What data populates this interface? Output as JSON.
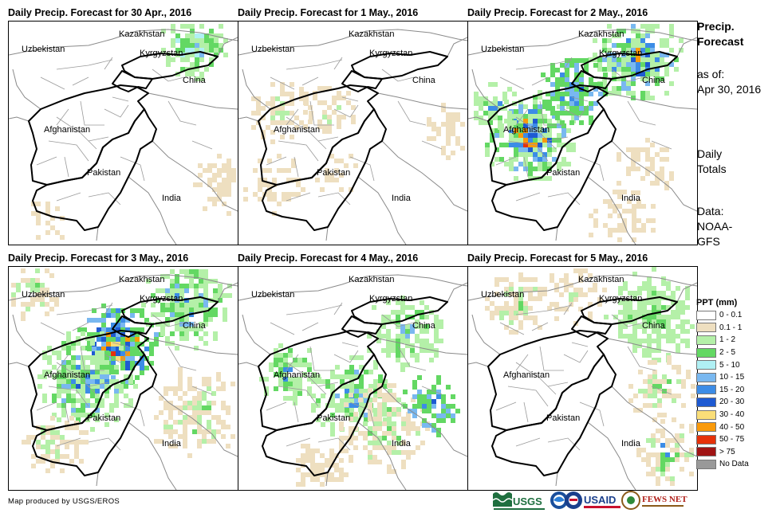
{
  "panels": [
    {
      "title": "Daily Precip. Forecast for 30 Apr., 2016"
    },
    {
      "title": "Daily Precip. Forecast for 1 May., 2016"
    },
    {
      "title": "Daily Precip. Forecast for 2 May., 2016"
    },
    {
      "title": "Daily Precip. Forecast for 3 May., 2016"
    },
    {
      "title": "Daily Precip. Forecast for 4 May., 2016"
    },
    {
      "title": "Daily Precip. Forecast for 5 May., 2016"
    }
  ],
  "map_labels": {
    "kazakhstan": "Kazakhstan",
    "uzbekistan": "Uzbekistan",
    "kyrgyzstan": "Kyrgyzstan",
    "china": "China",
    "afghanistan": "Afghanistan",
    "pakistan": "Pakistan",
    "india": "India"
  },
  "sidebar": {
    "title_line1": "Precip.",
    "title_line2": "Forecast",
    "asof_line1": "as of:",
    "asof_line2": "Apr 30, 2016",
    "totals_line1": "Daily",
    "totals_line2": "Totals",
    "data_line1": "Data:",
    "data_line2": "NOAA-",
    "data_line3": "GFS"
  },
  "legend": {
    "title": "PPT (mm)",
    "items": [
      {
        "label": "0 - 0.1",
        "color": "#ffffff"
      },
      {
        "label": "0.1 - 1",
        "color": "#eedfc0"
      },
      {
        "label": "1 - 2",
        "color": "#b4f0a8"
      },
      {
        "label": "2 - 5",
        "color": "#63d863"
      },
      {
        "label": "5 - 10",
        "color": "#b0f0f4"
      },
      {
        "label": "10 - 15",
        "color": "#79b8f0"
      },
      {
        "label": "15 - 20",
        "color": "#3c8ce6"
      },
      {
        "label": "20 - 30",
        "color": "#1e5ad2"
      },
      {
        "label": "30 - 40",
        "color": "#fade78"
      },
      {
        "label": "40 - 50",
        "color": "#fa9a0a"
      },
      {
        "label": "50 - 75",
        "color": "#e6320a"
      },
      {
        "label": "> 75",
        "color": "#a01414"
      },
      {
        "label": "No Data",
        "color": "#999999"
      }
    ]
  },
  "footer": {
    "credit": "Map produced by USGS/EROS",
    "logos": {
      "usgs": "USGS",
      "usaid": "USAID",
      "fewsnet": "FEWS NET"
    }
  }
}
